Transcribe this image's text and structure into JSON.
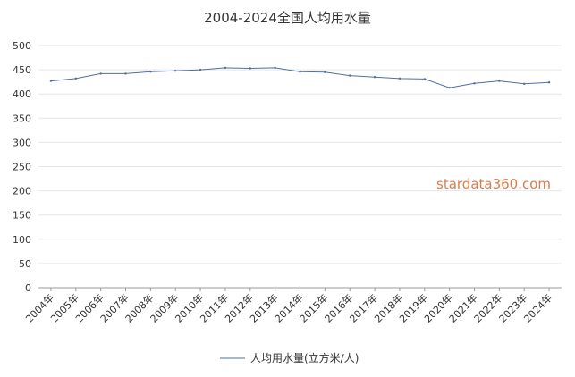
{
  "chart_data": {
    "type": "line",
    "title": "2004-2024全国人均用水量",
    "xlabel": "",
    "ylabel": "",
    "ylim": [
      0,
      500
    ],
    "yticks": [
      0,
      50,
      100,
      150,
      200,
      250,
      300,
      350,
      400,
      450,
      500
    ],
    "categories": [
      "2004年",
      "2005年",
      "2006年",
      "2007年",
      "2008年",
      "2009年",
      "2010年",
      "2011年",
      "2012年",
      "2013年",
      "2014年",
      "2015年",
      "2016年",
      "2017年",
      "2018年",
      "2019年",
      "2020年",
      "2021年",
      "2022年",
      "2023年",
      "2024年"
    ],
    "series": [
      {
        "name": "人均用水量(立方米/人)",
        "values": [
          427,
          432,
          442,
          442,
          446,
          448,
          450,
          454,
          453,
          454,
          446,
          445,
          438,
          435,
          432,
          431,
          413,
          422,
          427,
          421,
          424
        ]
      }
    ],
    "grid": true,
    "legend": "bottom-center",
    "colors": {
      "line": "#4e6fa3",
      "grid": "#e6e6e6",
      "axis": "#999999",
      "watermark": "#e07a4a"
    }
  },
  "watermark": "stardata360.com"
}
